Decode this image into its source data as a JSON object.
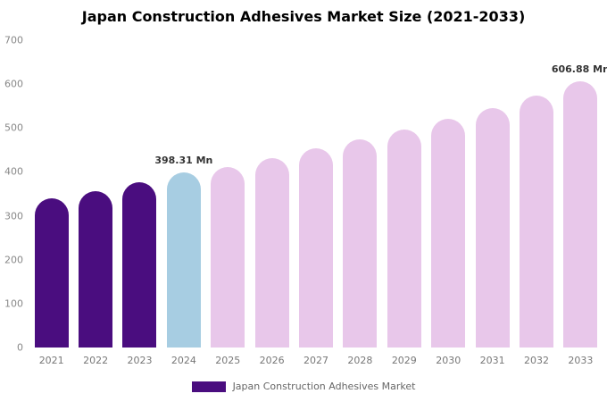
{
  "title": "Japan Construction Adhesives Market Size (2021-2033)",
  "legend": {
    "label": "Japan Construction Adhesives Market",
    "color": "#4a0d7f"
  },
  "chart_data": {
    "type": "bar",
    "title": "Japan Construction Adhesives Market Size (2021-2033)",
    "categories": [
      "2021",
      "2022",
      "2023",
      "2024",
      "2025",
      "2026",
      "2027",
      "2028",
      "2029",
      "2030",
      "2031",
      "2032",
      "2033"
    ],
    "values": [
      340,
      356,
      376,
      398.31,
      412,
      432,
      453,
      474,
      497,
      521,
      546,
      573,
      606.88
    ],
    "bar_colors": [
      "#4a0d7f",
      "#4a0d7f",
      "#4a0d7f",
      "#a7cde2",
      "#e8c7ea",
      "#e8c7ea",
      "#e8c7ea",
      "#e8c7ea",
      "#e8c7ea",
      "#e8c7ea",
      "#e8c7ea",
      "#e8c7ea",
      "#e8c7ea"
    ],
    "annotations": [
      {
        "category": "2024",
        "text": "398.31 Mn"
      },
      {
        "category": "2033",
        "text": "606.88 Mn"
      }
    ],
    "xlabel": "",
    "ylabel": "",
    "ylim": [
      0,
      700
    ],
    "yticks": [
      0,
      100,
      200,
      300,
      400,
      500,
      600,
      700
    ],
    "grid": false,
    "legend_entries": [
      "Japan Construction Adhesives Market"
    ],
    "legend_position": "bottom"
  }
}
